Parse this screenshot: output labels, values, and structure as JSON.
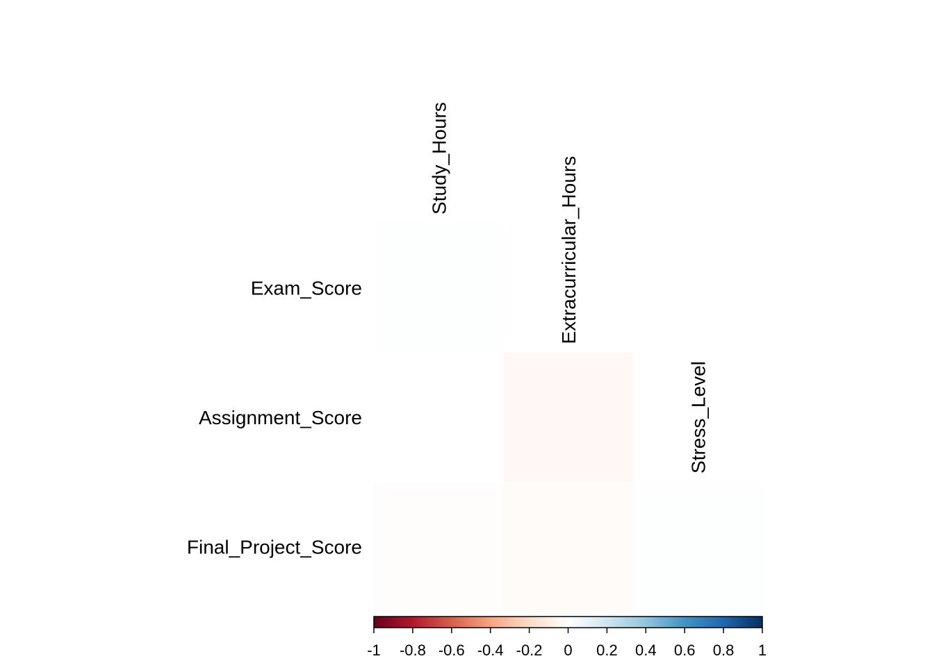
{
  "chart_data": {
    "type": "heatmap",
    "title": "",
    "rows": [
      "Exam_Score",
      "Assignment_Score",
      "Final_Project_Score"
    ],
    "columns": [
      "Study_Hours",
      "Extracurricular_Hours",
      "Stress_Level"
    ],
    "values": [
      [
        0.01,
        null,
        null
      ],
      [
        0.0,
        -0.04,
        null
      ],
      [
        -0.01,
        -0.02,
        0.01
      ]
    ],
    "colorbar": {
      "range": [
        -1,
        1
      ],
      "ticks": [
        "-1",
        "-0.8",
        "-0.6",
        "-0.4",
        "-0.2",
        "0",
        "0.2",
        "0.4",
        "0.6",
        "0.8",
        "1"
      ],
      "colors": [
        "#67001F",
        "#B2182B",
        "#D6604D",
        "#F4A582",
        "#FDDBC7",
        "#FFFFFF",
        "#D1E5F0",
        "#92C5DE",
        "#4393C3",
        "#2166AC",
        "#053061"
      ]
    },
    "grid": false,
    "legend": "bottom"
  }
}
